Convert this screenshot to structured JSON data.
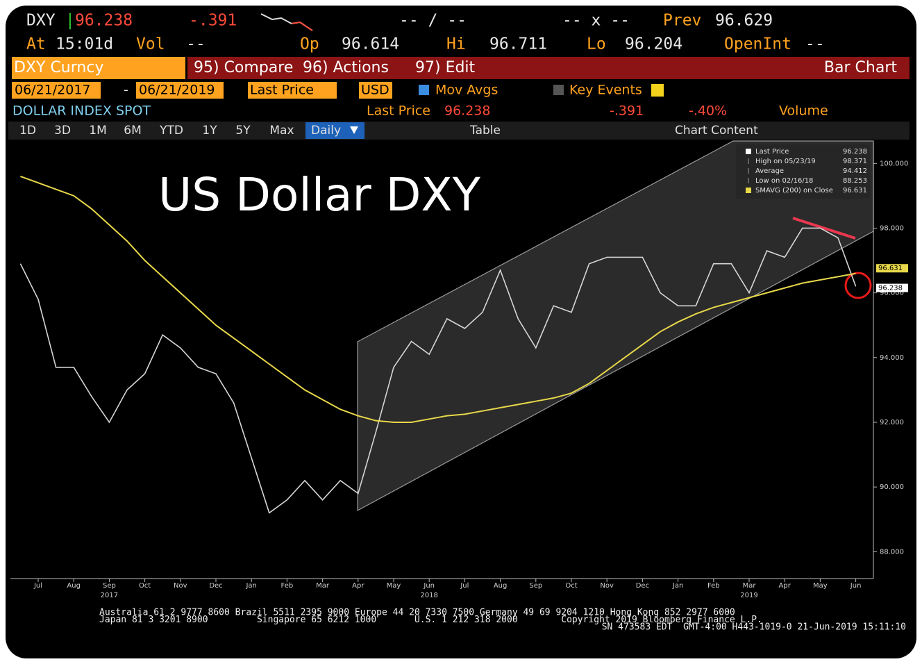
{
  "header": {
    "ticker": "DXY",
    "last": "96.238",
    "change": "-.391",
    "bid_ask": "-- / --",
    "size": "-- x --",
    "prev_label": "Prev",
    "prev": "96.629",
    "at_label": "At",
    "time": "15:01d",
    "vol_label": "Vol",
    "vol": "--",
    "open_label": "Op",
    "open": "96.614",
    "high_label": "Hi",
    "high": "96.711",
    "low_label": "Lo",
    "low": "96.204",
    "oi_label": "OpenInt",
    "oi": "--"
  },
  "toolbar": {
    "security": "DXY Curncy",
    "compare": "95) Compare",
    "actions": "96) Actions",
    "edit": "97) Edit",
    "chart_type": "Bar Chart"
  },
  "settings": {
    "start": "06/21/2017",
    "dash": "-",
    "end": "06/21/2019",
    "field": "Last Price",
    "currency": "USD",
    "mov_avgs": "Mov Avgs",
    "key_events": "Key Events"
  },
  "info": {
    "name": "DOLLAR INDEX SPOT",
    "field": "Last Price",
    "last": "96.238",
    "change": "-.391",
    "pct": "-.40%",
    "volume": "Volume"
  },
  "tabs": [
    "1D",
    "3D",
    "1M",
    "6M",
    "YTD",
    "1Y",
    "5Y",
    "Max",
    "Daily"
  ],
  "tools": {
    "table": "Table",
    "content": "Chart Content"
  },
  "chart_data": {
    "type": "line",
    "title": "US Dollar DXY",
    "categories": [
      null,
      "Jul",
      null,
      "Aug",
      null,
      "Sep",
      null,
      "Oct",
      null,
      "Nov",
      null,
      "Dec",
      null,
      "Jan",
      null,
      "Feb",
      null,
      "Mar",
      null,
      "Apr",
      null,
      "May",
      null,
      "Jun",
      null,
      "Jul",
      null,
      "Aug",
      null,
      "Sep",
      null,
      "Oct",
      null,
      "Nov",
      null,
      "Dec",
      null,
      "Jan",
      null,
      "Feb",
      null,
      "Mar",
      null,
      "Apr",
      null,
      "May",
      null,
      "Jun"
    ],
    "year_labels": [
      "2017",
      "2018",
      "2019"
    ],
    "series": [
      {
        "name": "Last Price",
        "color": "#d6d6d6",
        "last": 96.238,
        "values": [
          96.9,
          95.8,
          93.7,
          93.7,
          92.8,
          92.0,
          93.0,
          93.5,
          94.7,
          94.3,
          93.7,
          93.5,
          92.6,
          90.9,
          89.2,
          89.6,
          90.2,
          89.6,
          90.2,
          89.8,
          91.7,
          93.7,
          94.5,
          94.1,
          95.2,
          94.9,
          95.4,
          96.7,
          95.2,
          94.3,
          95.6,
          95.4,
          96.9,
          97.1,
          97.1,
          97.1,
          96.0,
          95.6,
          95.6,
          96.9,
          96.9,
          96.0,
          97.3,
          97.1,
          98.0,
          98.0,
          97.7,
          96.2
        ]
      },
      {
        "name": "SMAVG (200) on Close",
        "color": "#e8d84a",
        "last": 96.631,
        "values": [
          99.6,
          99.4,
          99.2,
          99.0,
          98.6,
          98.1,
          97.6,
          97.0,
          96.5,
          96.0,
          95.5,
          95.0,
          94.6,
          94.2,
          93.8,
          93.4,
          93.0,
          92.7,
          92.4,
          92.2,
          92.05,
          92.0,
          92.0,
          92.1,
          92.2,
          92.25,
          92.35,
          92.45,
          92.55,
          92.65,
          92.75,
          92.9,
          93.2,
          93.6,
          94.0,
          94.4,
          94.8,
          95.1,
          95.35,
          95.55,
          95.7,
          95.85,
          96.0,
          96.15,
          96.3,
          96.4,
          96.5,
          96.6
        ]
      }
    ],
    "stats": [
      {
        "label": "High on 05/23/19",
        "value": 98.371
      },
      {
        "label": "Average",
        "value": 94.412
      },
      {
        "label": "Low on 02/16/18",
        "value": 88.253
      }
    ],
    "ylim": [
      87.17,
      100.65
    ],
    "yticks": [
      {
        "value": 88,
        "label": "88.000"
      },
      {
        "value": 90,
        "label": "90.000"
      },
      {
        "value": 92,
        "label": "92.000"
      },
      {
        "value": 94,
        "label": "94.000"
      },
      {
        "value": 96,
        "label": "96.000"
      },
      {
        "value": 98,
        "label": "98.000"
      },
      {
        "value": 100,
        "label": "100.000"
      }
    ]
  },
  "footer": [
    "Australia 61 2 9777 8600 Brazil 5511 2395 9000 Europe 44 20 7330 7500 Germany 49 69 9204 1210 Hong Kong 852 2977 6000",
    "Japan 81 3 3201 8900         Singapore 65 6212 1000       U.S. 1 212 318 2000        Copyright 2019 Bloomberg Finance L.P.",
    "SN 473583 EDT  GMT-4:00 H443-1019-0 21-Jun-2019 15:11:10"
  ]
}
